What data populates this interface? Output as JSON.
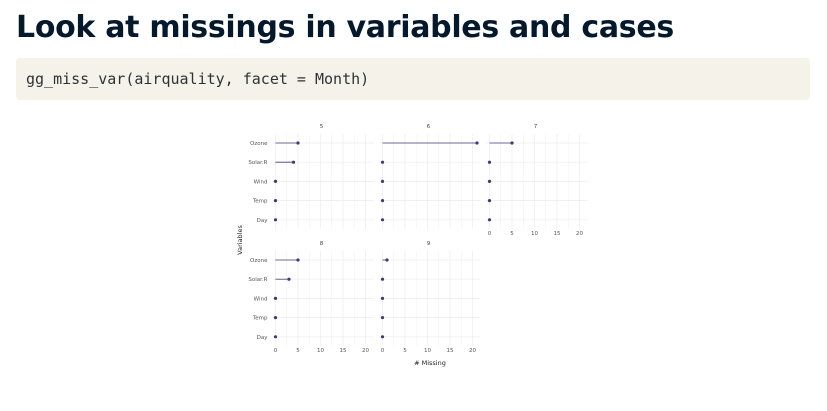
{
  "slide": {
    "title": "Look at missings in variables and cases",
    "code": "gg_miss_var(airquality, facet = Month)"
  },
  "colors": {
    "title": "#05192d",
    "code_bg": "#f5f2ea",
    "lollipop": "#3f3a78",
    "grid": "#ececec"
  },
  "chart_data": {
    "type": "scatter",
    "subtype": "lollipop-facet",
    "xlabel": "# Missing",
    "ylabel": "Variables",
    "variables": [
      "Ozone",
      "Solar.R",
      "Wind",
      "Temp",
      "Day"
    ],
    "x_ticks": [
      0,
      5,
      10,
      15,
      20
    ],
    "xlim": [
      0,
      21
    ],
    "grid": true,
    "facets": [
      {
        "label": "5",
        "values": [
          5,
          4,
          0,
          0,
          0
        ]
      },
      {
        "label": "6",
        "values": [
          21,
          0,
          0,
          0,
          0
        ]
      },
      {
        "label": "7",
        "values": [
          5,
          0,
          0,
          0,
          0
        ]
      },
      {
        "label": "8",
        "values": [
          5,
          3,
          0,
          0,
          0
        ]
      },
      {
        "label": "9",
        "values": [
          1,
          0,
          0,
          0,
          0
        ]
      }
    ]
  }
}
